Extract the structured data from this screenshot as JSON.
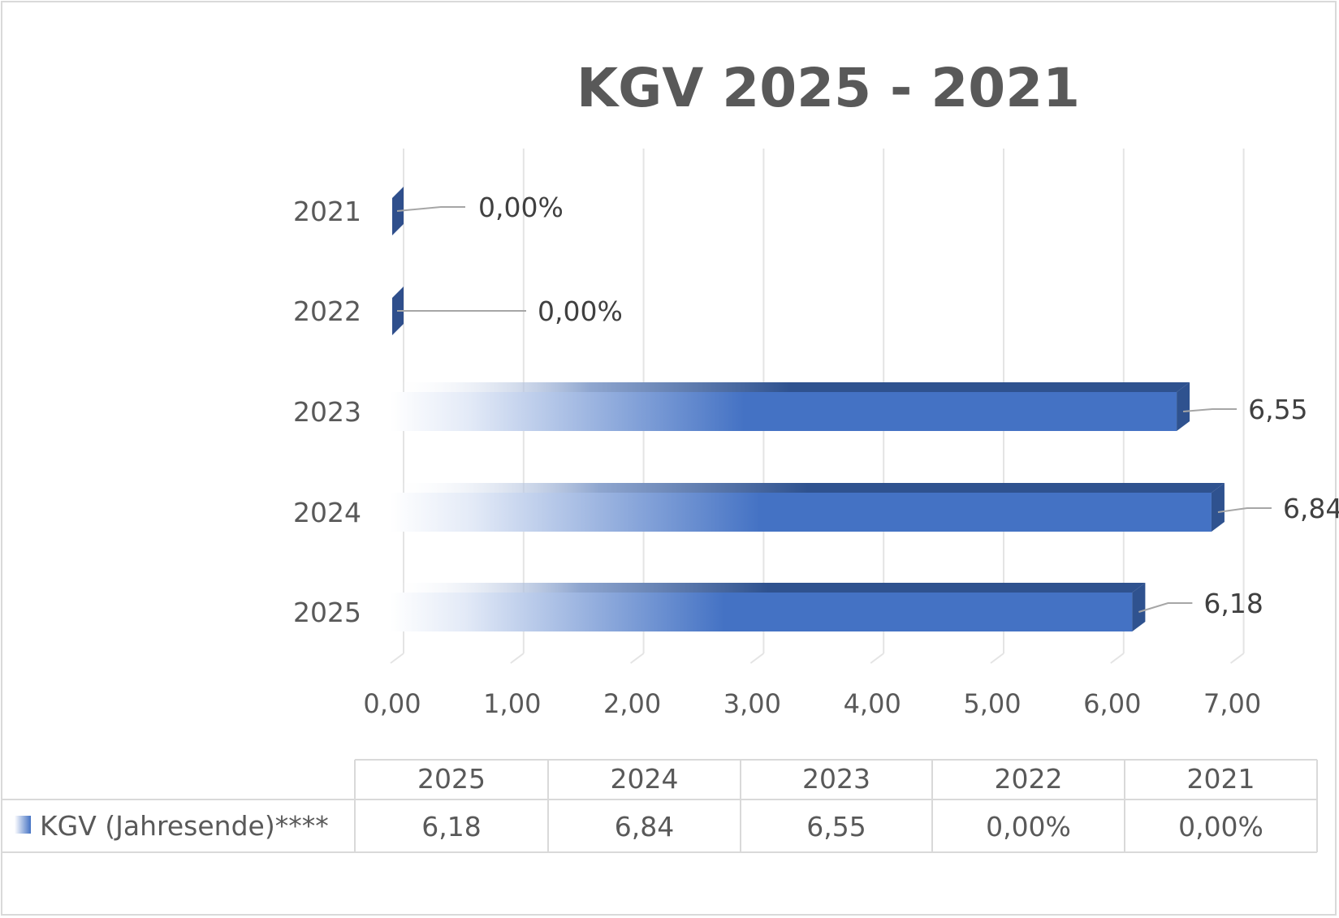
{
  "chart_data": {
    "type": "bar",
    "orientation": "horizontal",
    "title": "KGV 2025 - 2021",
    "categories": [
      "2021",
      "2022",
      "2023",
      "2024",
      "2025"
    ],
    "series": [
      {
        "name": "KGV (Jahresende)****",
        "values": [
          0,
          0,
          6.55,
          6.84,
          6.18
        ],
        "labels": [
          "0,00%",
          "0,00%",
          "6,55",
          "6,84",
          "6,18"
        ],
        "color": "#4472c4"
      }
    ],
    "xlim": [
      0,
      7
    ],
    "xticks": [
      "0,00",
      "1,00",
      "2,00",
      "3,00",
      "4,00",
      "5,00",
      "6,00",
      "7,00"
    ],
    "grid": true,
    "legend": "data-table"
  },
  "data_table": {
    "headers": [
      "2025",
      "2024",
      "2023",
      "2022",
      "2021"
    ],
    "row_label": "KGV (Jahresende)****",
    "values": [
      "6,18",
      "6,84",
      "6,55",
      "0,00%",
      "0,00%"
    ]
  }
}
